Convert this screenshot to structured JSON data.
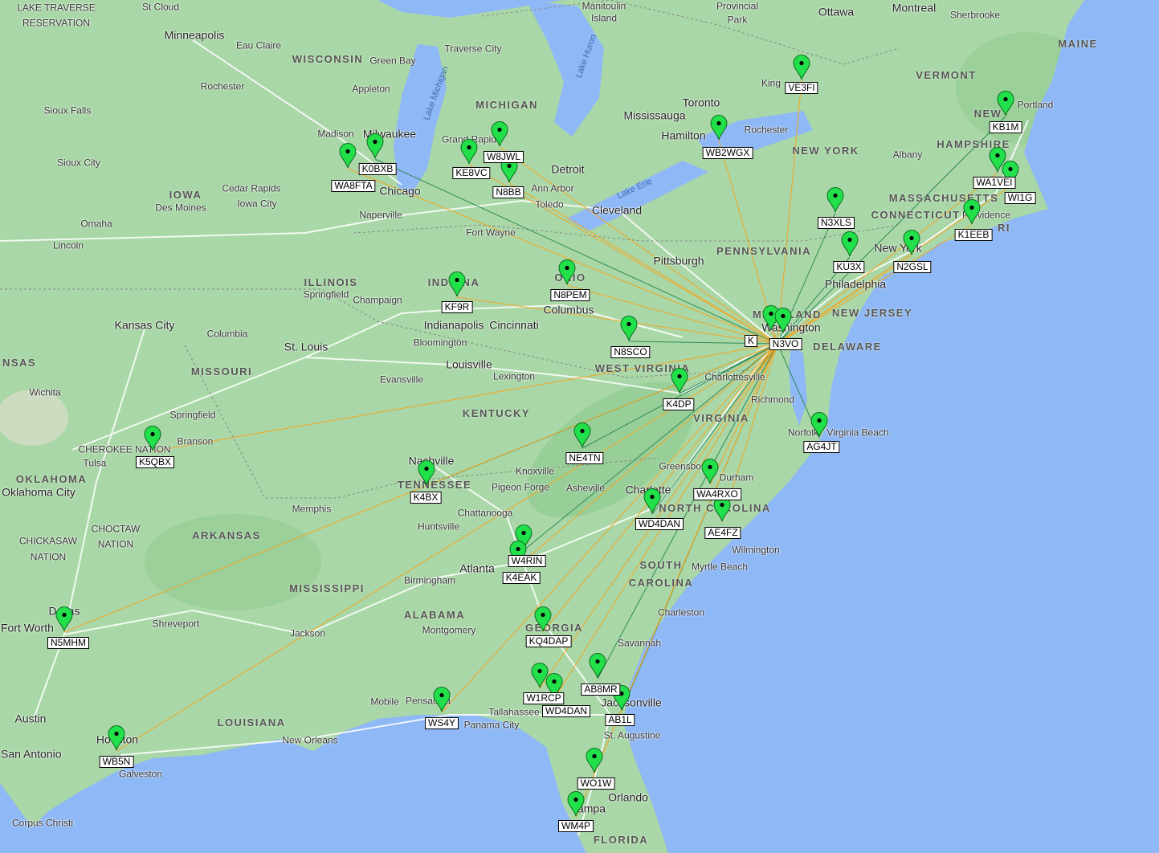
{
  "map": {
    "colors": {
      "land": "#a9d7a7",
      "water": "#8fb8f6",
      "road": "#ffffff",
      "marker": "#22e04a",
      "link_orange": "#f5a623",
      "link_green": "#2e8b57",
      "label_border": "#000000"
    },
    "hub_callsign": "N3VO",
    "markers": [
      {
        "callsign": "VE3FI",
        "link": "orange"
      },
      {
        "callsign": "KB1M",
        "link": "green"
      },
      {
        "callsign": "WB2WGX",
        "link": "orange"
      },
      {
        "callsign": "W8JWL",
        "link": "orange"
      },
      {
        "callsign": "KE8VC",
        "link": "orange"
      },
      {
        "callsign": "N8BB",
        "link": "orange"
      },
      {
        "callsign": "K0BXB",
        "link": "green"
      },
      {
        "callsign": "WA8FTA",
        "link": "orange"
      },
      {
        "callsign": "WA1VEI",
        "link": "orange"
      },
      {
        "callsign": "WI1G",
        "link": "orange"
      },
      {
        "callsign": "K1EEB",
        "link": "orange"
      },
      {
        "callsign": "N3XLS",
        "link": "green"
      },
      {
        "callsign": "KU3X",
        "link": "green"
      },
      {
        "callsign": "N2GSL",
        "link": "orange"
      },
      {
        "callsign": "N8PEM",
        "link": "orange"
      },
      {
        "callsign": "KF9R",
        "link": "orange"
      },
      {
        "callsign": "N8SCO",
        "link": "green"
      },
      {
        "callsign": "K",
        "link": "orange"
      },
      {
        "callsign": "N3VO",
        "link": "none"
      },
      {
        "callsign": "K4DP",
        "link": "green"
      },
      {
        "callsign": "AG4JT",
        "link": "green"
      },
      {
        "callsign": "K5QBX",
        "link": "orange"
      },
      {
        "callsign": "NE4TN",
        "link": "green"
      },
      {
        "callsign": "K4BX",
        "link": "green"
      },
      {
        "callsign": "WA4RXO",
        "link": "orange"
      },
      {
        "callsign": "WD4DAN",
        "link": "green"
      },
      {
        "callsign": "AE4FZ",
        "link": "orange"
      },
      {
        "callsign": "W4RIN",
        "link": "green"
      },
      {
        "callsign": "K4EAK",
        "link": "orange"
      },
      {
        "callsign": "KQ4DAP",
        "link": "orange"
      },
      {
        "callsign": "N5MHM",
        "link": "orange"
      },
      {
        "callsign": "AB8MR",
        "link": "green"
      },
      {
        "callsign": "W1RCP",
        "link": "orange"
      },
      {
        "callsign": "WD4DAN",
        "link": "orange"
      },
      {
        "callsign": "AB1L",
        "link": "green"
      },
      {
        "callsign": "WS4Y",
        "link": "orange"
      },
      {
        "callsign": "WB5N",
        "link": "orange"
      },
      {
        "callsign": "WO1W",
        "link": "orange"
      },
      {
        "callsign": "WM4P",
        "link": "orange"
      }
    ],
    "places": [
      {
        "t": "LAKE TRAVERSE",
        "k": "small"
      },
      {
        "t": "RESERVATION",
        "k": "small"
      },
      {
        "t": "St Cloud",
        "k": "small"
      },
      {
        "t": "Minneapolis",
        "k": "city"
      },
      {
        "t": "Eau Claire",
        "k": "small"
      },
      {
        "t": "WISCONSIN",
        "k": "state"
      },
      {
        "t": "Green Bay",
        "k": "small"
      },
      {
        "t": "Appleton",
        "k": "small"
      },
      {
        "t": "Rochester",
        "k": "small"
      },
      {
        "t": "Sioux Falls",
        "k": "small"
      },
      {
        "t": "Madison",
        "k": "small"
      },
      {
        "t": "Milwaukee",
        "k": "city"
      },
      {
        "t": "Sioux City",
        "k": "small"
      },
      {
        "t": "IOWA",
        "k": "state"
      },
      {
        "t": "Cedar Rapids",
        "k": "small"
      },
      {
        "t": "Des Moines",
        "k": "small"
      },
      {
        "t": "Iowa City",
        "k": "small"
      },
      {
        "t": "Chicago",
        "k": "city"
      },
      {
        "t": "Naperville",
        "k": "small"
      },
      {
        "t": "Omaha",
        "k": "small"
      },
      {
        "t": "Lincoln",
        "k": "small"
      },
      {
        "t": "MICHIGAN",
        "k": "state"
      },
      {
        "t": "Traverse City",
        "k": "small"
      },
      {
        "t": "Grand Rapids",
        "k": "small"
      },
      {
        "t": "Detroit",
        "k": "city"
      },
      {
        "t": "Ann Arbor",
        "k": "small"
      },
      {
        "t": "Toledo",
        "k": "small"
      },
      {
        "t": "Fort Wayne",
        "k": "small"
      },
      {
        "t": "Cleveland",
        "k": "city"
      },
      {
        "t": "Toronto",
        "k": "city"
      },
      {
        "t": "Mississauga",
        "k": "city"
      },
      {
        "t": "Hamilton",
        "k": "city"
      },
      {
        "t": "Rochester",
        "k": "small"
      },
      {
        "t": "Ottawa",
        "k": "city"
      },
      {
        "t": "Montreal",
        "k": "city"
      },
      {
        "t": "Sherbrooke",
        "k": "small"
      },
      {
        "t": "Provincial",
        "k": "small"
      },
      {
        "t": "Park",
        "k": "small"
      },
      {
        "t": "Manitoulin",
        "k": "small"
      },
      {
        "t": "Island",
        "k": "small"
      },
      {
        "t": "MAINE",
        "k": "state"
      },
      {
        "t": "VERMONT",
        "k": "state"
      },
      {
        "t": "Portland",
        "k": "small"
      },
      {
        "t": "NEW",
        "k": "state"
      },
      {
        "t": "HAMPSHIRE",
        "k": "state"
      },
      {
        "t": "NEW YORK",
        "k": "state"
      },
      {
        "t": "Albany",
        "k": "small"
      },
      {
        "t": "MASSACHUSETTS",
        "k": "state"
      },
      {
        "t": "Providence",
        "k": "small"
      },
      {
        "t": "CONNECTICUT",
        "k": "state"
      },
      {
        "t": "RI",
        "k": "state"
      },
      {
        "t": "King",
        "k": "small"
      },
      {
        "t": "PENNSYLVANIA",
        "k": "state"
      },
      {
        "t": "Pittsburgh",
        "k": "city"
      },
      {
        "t": "New York",
        "k": "city"
      },
      {
        "t": "Philadelphia",
        "k": "city"
      },
      {
        "t": "NEW JERSEY",
        "k": "state"
      },
      {
        "t": "MARYLAND",
        "k": "state"
      },
      {
        "t": "Washington",
        "k": "city"
      },
      {
        "t": "DELAWARE",
        "k": "state"
      },
      {
        "t": "OHIO",
        "k": "state"
      },
      {
        "t": "Columbus",
        "k": "city"
      },
      {
        "t": "INDIANA",
        "k": "state"
      },
      {
        "t": "Indianapolis",
        "k": "city"
      },
      {
        "t": "Bloomington",
        "k": "small"
      },
      {
        "t": "Cincinnati",
        "k": "city"
      },
      {
        "t": "ILLINOIS",
        "k": "state"
      },
      {
        "t": "Springfield",
        "k": "small"
      },
      {
        "t": "Champaign",
        "k": "small"
      },
      {
        "t": "Kansas City",
        "k": "city"
      },
      {
        "t": "Columbia",
        "k": "small"
      },
      {
        "t": "St. Louis",
        "k": "city"
      },
      {
        "t": "MISSOURI",
        "k": "state"
      },
      {
        "t": "NSAS",
        "k": "state"
      },
      {
        "t": "Wichita",
        "k": "small"
      },
      {
        "t": "Louisville",
        "k": "city"
      },
      {
        "t": "Evansville",
        "k": "small"
      },
      {
        "t": "Lexington",
        "k": "small"
      },
      {
        "t": "WEST VIRGINIA",
        "k": "state"
      },
      {
        "t": "Charlottesville",
        "k": "small"
      },
      {
        "t": "Richmond",
        "k": "small"
      },
      {
        "t": "VIRGINIA",
        "k": "state"
      },
      {
        "t": "KENTUCKY",
        "k": "state"
      },
      {
        "t": "Springfield",
        "k": "small"
      },
      {
        "t": "Branson",
        "k": "small"
      },
      {
        "t": "Tulsa",
        "k": "small"
      },
      {
        "t": "CHEROKEE NATION",
        "k": "small"
      },
      {
        "t": "OKLAHOMA",
        "k": "state"
      },
      {
        "t": "Oklahoma City",
        "k": "city"
      },
      {
        "t": "Nashville",
        "k": "city"
      },
      {
        "t": "TENNESSEE",
        "k": "state"
      },
      {
        "t": "Knoxville",
        "k": "small"
      },
      {
        "t": "Pigeon Forge",
        "k": "small"
      },
      {
        "t": "Asheville",
        "k": "small"
      },
      {
        "t": "Norfolk",
        "k": "small"
      },
      {
        "t": "Virginia Beach",
        "k": "small"
      },
      {
        "t": "Greensboro",
        "k": "small"
      },
      {
        "t": "Durham",
        "k": "small"
      },
      {
        "t": "NORTH CAROLINA",
        "k": "state"
      },
      {
        "t": "Charlotte",
        "k": "city"
      },
      {
        "t": "Memphis",
        "k": "small"
      },
      {
        "t": "Chattanooga",
        "k": "small"
      },
      {
        "t": "Huntsville",
        "k": "small"
      },
      {
        "t": "CHOCTAW",
        "k": "small"
      },
      {
        "t": "NATION",
        "k": "small"
      },
      {
        "t": "CHICKASAW",
        "k": "small"
      },
      {
        "t": "NATION",
        "k": "small"
      },
      {
        "t": "ARKANSAS",
        "k": "state"
      },
      {
        "t": "Atlanta",
        "k": "city"
      },
      {
        "t": "Wilmington",
        "k": "small"
      },
      {
        "t": "SOUTH",
        "k": "state"
      },
      {
        "t": "CAROLINA",
        "k": "state"
      },
      {
        "t": "Myrtle Beach",
        "k": "small"
      },
      {
        "t": "Birmingham",
        "k": "small"
      },
      {
        "t": "MISSISSIPPI",
        "k": "state"
      },
      {
        "t": "ALABAMA",
        "k": "state"
      },
      {
        "t": "Montgomery",
        "k": "small"
      },
      {
        "t": "GEORGIA",
        "k": "state"
      },
      {
        "t": "Charleston",
        "k": "small"
      },
      {
        "t": "Dallas",
        "k": "city"
      },
      {
        "t": "Fort Worth",
        "k": "city"
      },
      {
        "t": "Shreveport",
        "k": "small"
      },
      {
        "t": "Jackson",
        "k": "small"
      },
      {
        "t": "Savannah",
        "k": "small"
      },
      {
        "t": "Mobile",
        "k": "small"
      },
      {
        "t": "Pensacola",
        "k": "small"
      },
      {
        "t": "Tallahassee",
        "k": "small"
      },
      {
        "t": "Jacksonville",
        "k": "city"
      },
      {
        "t": "St. Augustine",
        "k": "small"
      },
      {
        "t": "Austin",
        "k": "city"
      },
      {
        "t": "LOUISIANA",
        "k": "state"
      },
      {
        "t": "New Orleans",
        "k": "small"
      },
      {
        "t": "Houston",
        "k": "city"
      },
      {
        "t": "Galveston",
        "k": "small"
      },
      {
        "t": "San Antonio",
        "k": "city"
      },
      {
        "t": "Orlando",
        "k": "city"
      },
      {
        "t": "Tampa",
        "k": "city"
      },
      {
        "t": "FLORIDA",
        "k": "state"
      },
      {
        "t": "Corpus Christi",
        "k": "small"
      },
      {
        "t": "Panama City",
        "k": "small"
      },
      {
        "t": "Lake Michigan",
        "k": "water"
      },
      {
        "t": "Lake Huron",
        "k": "water"
      },
      {
        "t": "Lake Erie",
        "k": "water"
      }
    ]
  }
}
